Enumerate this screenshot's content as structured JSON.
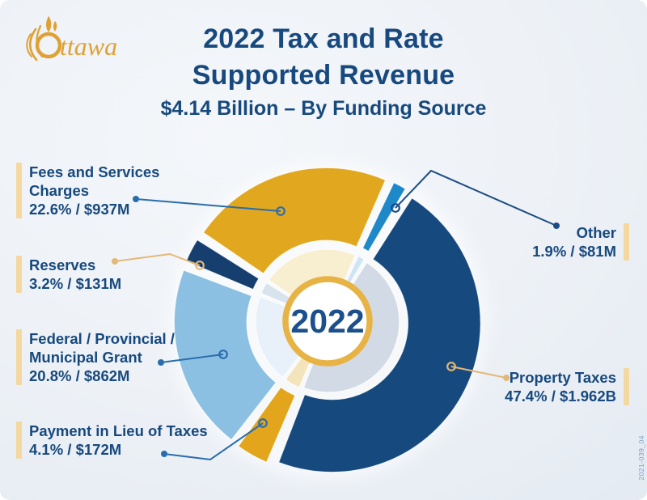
{
  "logo": {
    "wordmark": "Ottawa",
    "wordmark_tail": "ttawa",
    "color": "#dfa134"
  },
  "header": {
    "title_line1": "2022 Tax and Rate",
    "title_line2": "Supported Revenue",
    "subtitle": "$4.14 Billion – By Funding Source"
  },
  "chart_data": {
    "type": "pie",
    "title": "2022 Tax and Rate Supported Revenue",
    "subtitle": "$4.14 Billion – By Funding Source",
    "total_label": "$4.14 Billion",
    "center_label": "2022",
    "start_angle_deg": 24.6,
    "legend_position": "callout-labels",
    "segments": [
      {
        "name": "Other",
        "percent": 1.9,
        "amount": "$81M",
        "color": "#1e88c9",
        "light_color": "#cfe4f4",
        "leader_color": "#1b4d85",
        "label_lines": [
          "Other",
          "1.9% / $81M"
        ]
      },
      {
        "name": "Property Taxes",
        "percent": 47.4,
        "amount": "$1.962B",
        "color": "#164a7e",
        "light_color": "#d2dbe5",
        "leader_color": "#e4b877",
        "label_lines": [
          "Property Taxes",
          "47.4% / $1.962B"
        ]
      },
      {
        "name": "Payment in Lieu of Taxes",
        "percent": 4.1,
        "amount": "$172M",
        "color": "#e2a51c",
        "light_color": "#f3e4bb",
        "leader_color": "#2a6dad",
        "label_lines": [
          "Payment in Lieu of Taxes",
          "4.1% / $172M"
        ]
      },
      {
        "name": "Federal / Provincial / Municipal Grant",
        "percent": 20.8,
        "amount": "$862M",
        "color": "#8cc0e2",
        "light_color": "#e8f1f9",
        "leader_color": "#2a6dad",
        "label_lines": [
          "Federal / Provincial /",
          "Municipal Grant",
          "20.8% / $862M"
        ]
      },
      {
        "name": "Reserves",
        "percent": 3.2,
        "amount": "$131M",
        "color": "#163f6f",
        "light_color": "#d9e3ed",
        "leader_color": "#e4b877",
        "label_lines": [
          "Reserves",
          "3.2% / $131M"
        ]
      },
      {
        "name": "Fees and Services Charges",
        "percent": 22.6,
        "amount": "$937M",
        "color": "#e1a71e",
        "light_color": "#f8eed0",
        "leader_color": "#2a6dad",
        "label_lines": [
          "Fees and Services",
          "Charges",
          "22.6% / $937M"
        ]
      }
    ],
    "accent_bar_color": "#f3d9a0",
    "center_ring_color": "#e8b345"
  },
  "footnote": "2021-039_04"
}
